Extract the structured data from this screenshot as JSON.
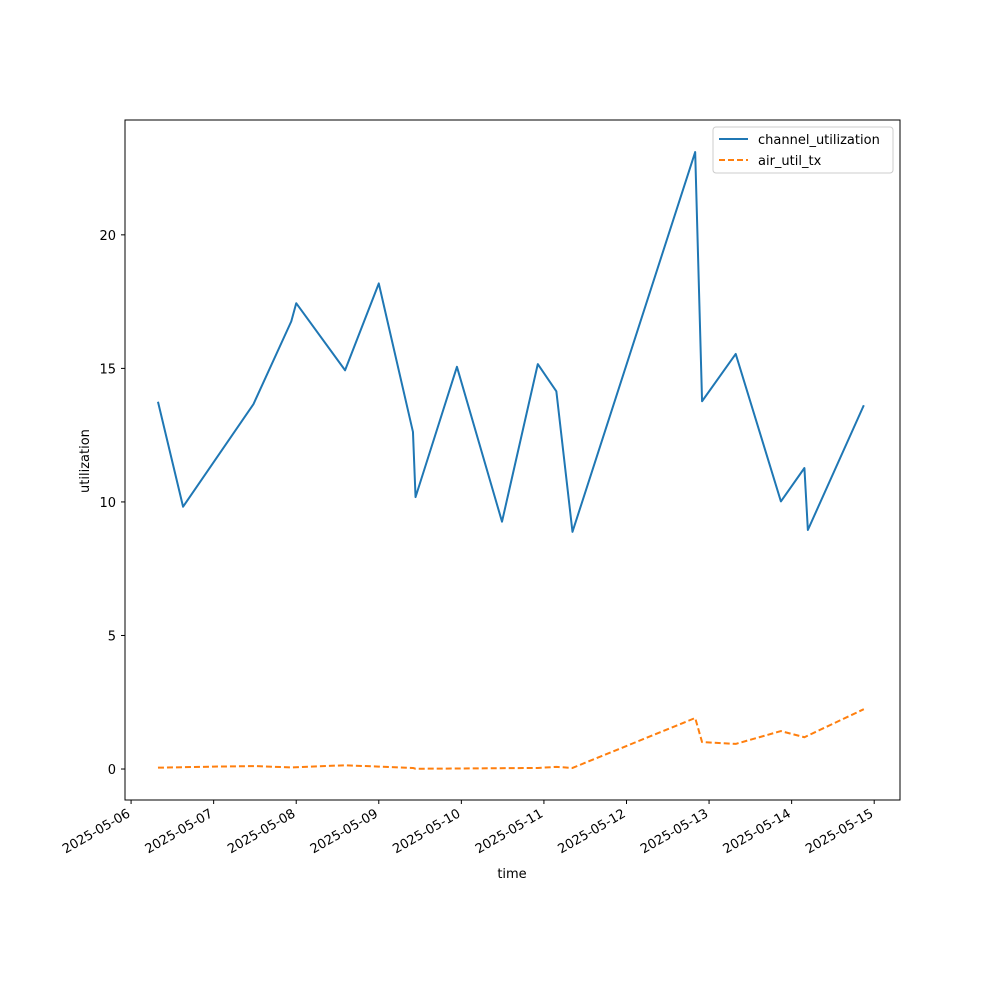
{
  "chart_data": {
    "type": "line",
    "title": "",
    "xlabel": "time",
    "ylabel": "utilization",
    "x_tick_labels": [
      "2025-05-06",
      "2025-05-07",
      "2025-05-08",
      "2025-05-09",
      "2025-05-10",
      "2025-05-11",
      "2025-05-12",
      "2025-05-13",
      "2025-05-14",
      "2025-05-15"
    ],
    "y_tick_labels": [
      "0",
      "5",
      "10",
      "15",
      "20"
    ],
    "y_ticks": [
      0,
      5,
      10,
      15,
      20
    ],
    "xlim": [
      "2025-05-05 22:14",
      "2025-05-15 07:30"
    ],
    "ylim": [
      -1.16,
      24.3
    ],
    "grid": false,
    "legend_position": "top-right",
    "series": [
      {
        "name": "channel_utilization",
        "color": "#1f77b4",
        "line_style": "solid",
        "points": [
          {
            "x": "2025-05-06 07:49",
            "y": 13.75
          },
          {
            "x": "2025-05-06 15:07",
            "y": 9.82
          },
          {
            "x": "2025-05-07 11:34",
            "y": 13.66
          },
          {
            "x": "2025-05-07 22:34",
            "y": 16.76
          },
          {
            "x": "2025-05-08 00:00",
            "y": 17.44
          },
          {
            "x": "2025-05-08 14:12",
            "y": 14.93
          },
          {
            "x": "2025-05-09 00:00",
            "y": 18.18
          },
          {
            "x": "2025-05-09 09:56",
            "y": 12.62
          },
          {
            "x": "2025-05-09 10:41",
            "y": 10.18
          },
          {
            "x": "2025-05-09 22:43",
            "y": 15.06
          },
          {
            "x": "2025-05-10 11:49",
            "y": 9.26
          },
          {
            "x": "2025-05-10 22:13",
            "y": 15.16
          },
          {
            "x": "2025-05-11 03:37",
            "y": 14.14
          },
          {
            "x": "2025-05-11 08:18",
            "y": 8.88
          },
          {
            "x": "2025-05-12 19:58",
            "y": 23.1
          },
          {
            "x": "2025-05-12 21:58",
            "y": 13.77
          },
          {
            "x": "2025-05-13 07:45",
            "y": 15.54
          },
          {
            "x": "2025-05-13 20:53",
            "y": 10.02
          },
          {
            "x": "2025-05-14 03:43",
            "y": 11.27
          },
          {
            "x": "2025-05-14 04:43",
            "y": 8.95
          },
          {
            "x": "2025-05-14 20:59",
            "y": 13.62
          }
        ]
      },
      {
        "name": "air_util_tx",
        "color": "#ff7f0e",
        "line_style": "dashed",
        "points": [
          {
            "x": "2025-05-06 07:49",
            "y": 0.05
          },
          {
            "x": "2025-05-07 00:00",
            "y": 0.09
          },
          {
            "x": "2025-05-07 12:00",
            "y": 0.11
          },
          {
            "x": "2025-05-07 22:34",
            "y": 0.06
          },
          {
            "x": "2025-05-08 14:12",
            "y": 0.14
          },
          {
            "x": "2025-05-09 00:00",
            "y": 0.09
          },
          {
            "x": "2025-05-09 09:56",
            "y": 0.04
          },
          {
            "x": "2025-05-09 10:41",
            "y": 0.01
          },
          {
            "x": "2025-05-10 00:00",
            "y": 0.02
          },
          {
            "x": "2025-05-10 22:13",
            "y": 0.04
          },
          {
            "x": "2025-05-11 03:37",
            "y": 0.08
          },
          {
            "x": "2025-05-11 08:18",
            "y": 0.04
          },
          {
            "x": "2025-05-12 19:58",
            "y": 1.91
          },
          {
            "x": "2025-05-12 21:58",
            "y": 1.01
          },
          {
            "x": "2025-05-13 07:45",
            "y": 0.94
          },
          {
            "x": "2025-05-13 20:53",
            "y": 1.42
          },
          {
            "x": "2025-05-14 03:43",
            "y": 1.19
          },
          {
            "x": "2025-05-14 20:59",
            "y": 2.24
          }
        ]
      }
    ]
  }
}
